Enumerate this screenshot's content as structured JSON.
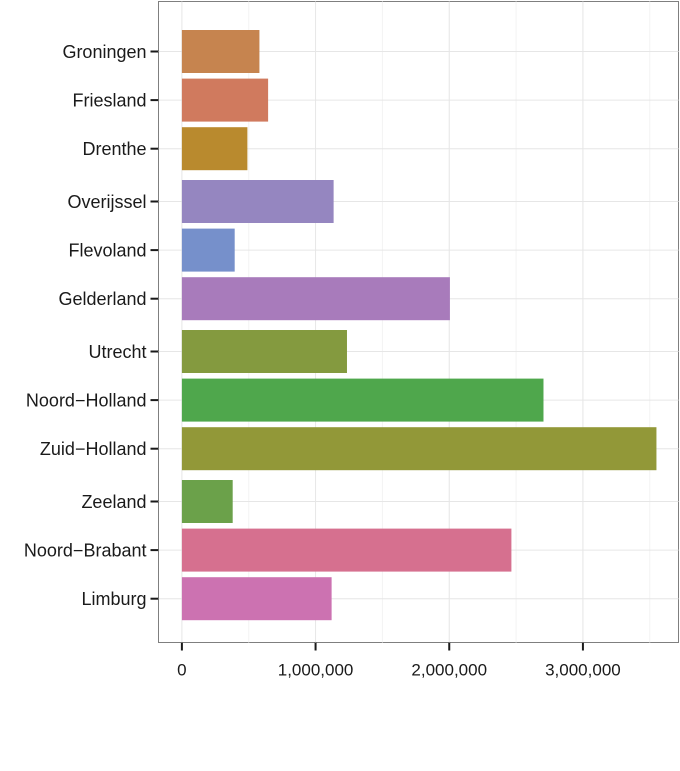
{
  "chart_data": {
    "type": "bar",
    "orientation": "horizontal",
    "categories": [
      "Groningen",
      "Friesland",
      "Drenthe",
      "Overijssel",
      "Flevoland",
      "Gelderland",
      "Utrecht",
      "Noord−Holland",
      "Zuid−Holland",
      "Zeeland",
      "Noord−Brabant",
      "Limburg"
    ],
    "values": [
      580000,
      645000,
      490000,
      1135000,
      395000,
      2005000,
      1235000,
      2705000,
      3550000,
      380000,
      2465000,
      1120000
    ],
    "colors": [
      "#c6844f",
      "#d07a5e",
      "#b98a2e",
      "#9586c0",
      "#7690cb",
      "#a87bbb",
      "#849a3f",
      "#4fa74c",
      "#929838",
      "#6ba14a",
      "#d6708f",
      "#cc72b1"
    ],
    "groups": [
      3,
      3,
      3,
      3
    ],
    "xlim": [
      -175000,
      3715000
    ],
    "xticks": [
      0,
      1000000,
      2000000,
      3000000
    ],
    "xtick_labels": [
      "0",
      "1,000,000",
      "2,000,000",
      "3,000,000"
    ],
    "title": "",
    "xlabel": "",
    "ylabel": "",
    "grid": true,
    "legend": "none"
  }
}
